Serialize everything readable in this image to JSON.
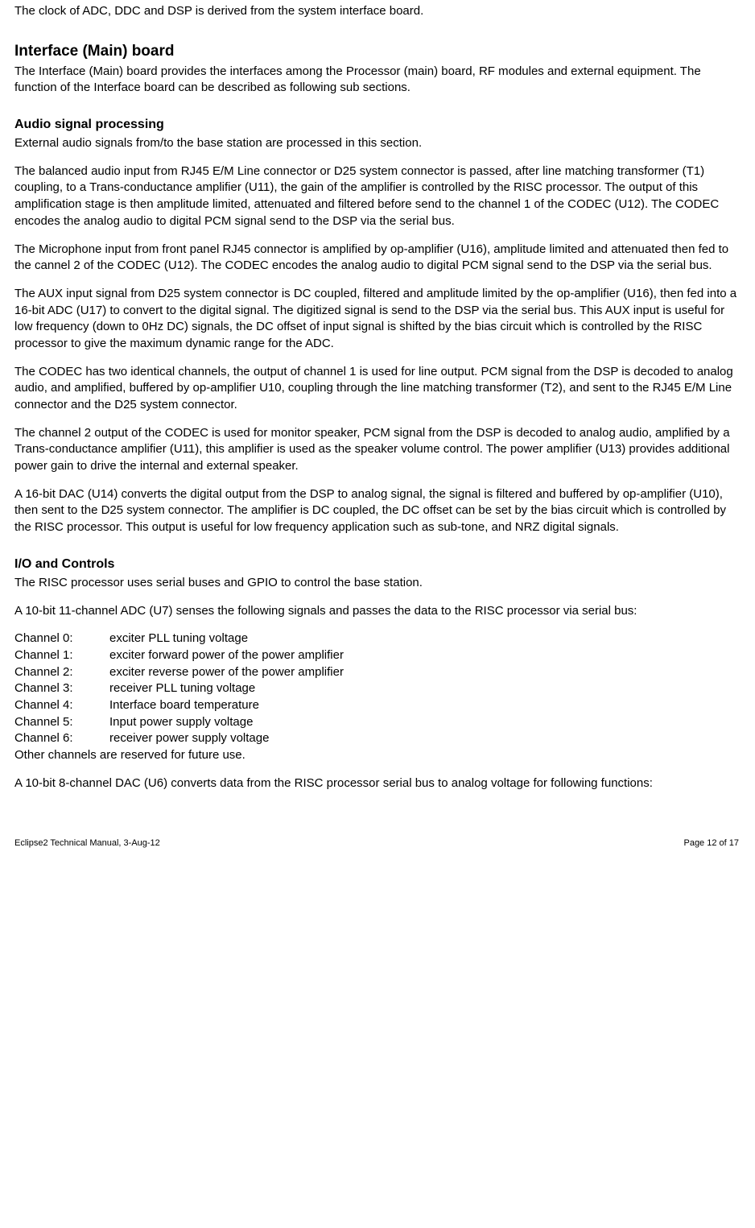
{
  "intro": "The clock of ADC, DDC and DSP is derived from the system interface board.",
  "sections": {
    "interface": {
      "heading": "Interface (Main) board",
      "p1": "The Interface (Main) board provides the interfaces among the Processor (main) board, RF modules and external equipment. The function of the Interface board can be described as following sub sections."
    },
    "audio": {
      "heading": "Audio signal processing",
      "p1": "External audio signals from/to the base station are processed in this section.",
      "p2": "The balanced audio input from RJ45 E/M Line connector or D25 system connector is passed, after line matching transformer (T1) coupling, to a Trans-conductance amplifier (U11), the gain of the amplifier is controlled by the RISC processor. The output of this amplification stage is then amplitude limited, attenuated and filtered before send to the channel 1 of the CODEC (U12). The CODEC encodes the analog audio to digital PCM signal send to the DSP via the serial bus.",
      "p3": "The Microphone input from front panel RJ45 connector is amplified by op-amplifier (U16), amplitude limited and attenuated then fed to the cannel 2 of the CODEC (U12). The CODEC encodes the analog audio to digital PCM signal send to the DSP via the serial bus.",
      "p4": "The AUX input signal from D25 system connector is DC coupled, filtered and amplitude limited by the op-amplifier (U16), then fed into a 16-bit ADC (U17) to convert to the digital signal. The digitized signal is send to the DSP via the serial bus. This AUX input is useful for low frequency (down to 0Hz DC) signals, the DC offset of input signal is shifted by the bias circuit which is controlled by the RISC processor to give the maximum dynamic range for the ADC.",
      "p5": "The CODEC has two identical channels, the output of channel 1 is used for line output. PCM signal from the DSP is decoded to analog audio, and amplified, buffered by op-amplifier U10, coupling through the line matching transformer (T2), and sent to the RJ45 E/M Line connector and the D25 system connector.",
      "p6": "The channel 2 output of the CODEC is used for monitor speaker, PCM signal from the DSP is decoded to analog audio, amplified by a Trans-conductance amplifier (U11), this amplifier is used as the speaker volume control. The power amplifier (U13) provides additional power gain to drive the internal and external speaker.",
      "p7": "A 16-bit DAC (U14) converts the digital output from the DSP to analog signal, the signal is filtered and buffered by op-amplifier (U10), then sent to the D25 system connector. The amplifier is DC coupled, the DC offset can be set by the bias circuit which is controlled by the RISC processor. This output is useful for low frequency application such as sub-tone, and NRZ digital signals."
    },
    "io": {
      "heading": "I/O and Controls",
      "p1": "The RISC processor uses serial buses and GPIO to control the base station.",
      "p2": "A 10-bit 11-channel ADC (U7) senses the following signals and passes the data to the RISC processor via serial bus:",
      "channels": [
        {
          "label": "Channel 0:",
          "desc": "exciter PLL tuning voltage"
        },
        {
          "label": "Channel 1:",
          "desc": "exciter forward power of the power amplifier"
        },
        {
          "label": "Channel 2:",
          "desc": "exciter reverse power of the power amplifier"
        },
        {
          "label": "Channel 3:",
          "desc": "receiver PLL tuning voltage"
        },
        {
          "label": "Channel 4:",
          "desc": "Interface board temperature"
        },
        {
          "label": "Channel 5:",
          "desc": "Input power supply voltage"
        },
        {
          "label": "Channel 6:",
          "desc": "receiver power supply voltage"
        }
      ],
      "channels_note": "Other channels are reserved for future use.",
      "p3": "A 10-bit 8-channel DAC (U6) converts data from the RISC processor serial bus to analog voltage for following functions:"
    }
  },
  "footer": {
    "left": "Eclipse2 Technical Manual, 3-Aug-12",
    "right": "Page 12 of 17"
  }
}
